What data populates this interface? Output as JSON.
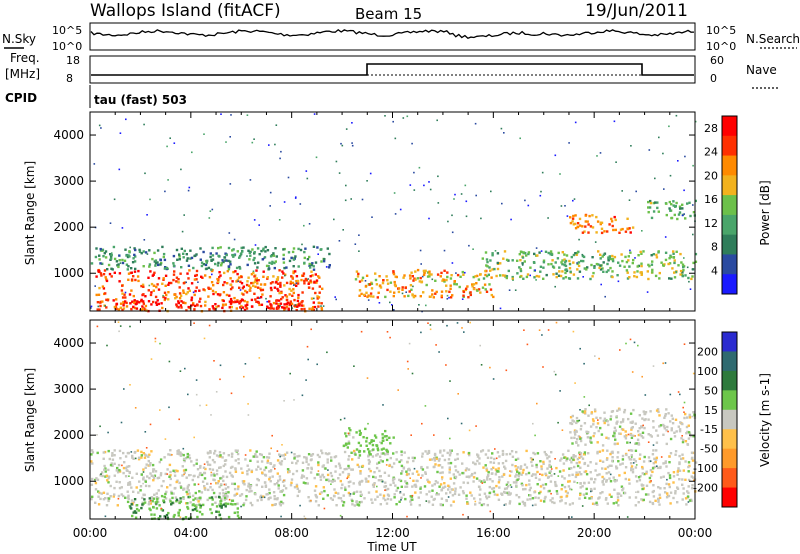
{
  "header": {
    "station": "Wallops Island (fitACF)",
    "beam": "Beam 15",
    "date": "19/Jun/2011"
  },
  "noise_panel": {
    "left_label": "N.Sky",
    "right_label": "N.Search",
    "left_ticks": [
      "10^5",
      "10^0"
    ],
    "right_ticks": [
      "10^5",
      "10^0"
    ]
  },
  "freq_panel": {
    "left_label_line1": "Freq.",
    "left_label_line2": "[MHz]",
    "left_ticks": [
      "18",
      "8"
    ],
    "right_label": "Nave",
    "right_ticks": [
      "60",
      "0"
    ]
  },
  "cpid": {
    "label": "CPID",
    "value": "tau (fast) 503"
  },
  "colors": {
    "power": [
      "#1a1aff",
      "#2a4aa0",
      "#2f7d5a",
      "#4aa56a",
      "#6cc04a",
      "#f2b21e",
      "#ff8a00",
      "#ff3000",
      "#ff0000"
    ],
    "velocity": [
      "#2b2bd0",
      "#2f6a70",
      "#2e7a3c",
      "#6dc64a",
      "#c8c8c0",
      "#ffc04a",
      "#ff9a2a",
      "#ff5a1a",
      "#ff0000"
    ]
  },
  "chart_data": [
    {
      "type": "heatmap",
      "name": "power",
      "xlabel": "Time UT",
      "ylabel": "Slant Range [km]",
      "xlim": [
        "00:00",
        "00:00"
      ],
      "ylim": [
        180,
        4500
      ],
      "x_ticks": [
        "00:00",
        "04:00",
        "08:00",
        "12:00",
        "16:00",
        "20:00",
        "00:00"
      ],
      "y_ticks": [
        1000,
        2000,
        3000,
        4000
      ],
      "colorbar": {
        "label": "Power [dB]",
        "ticks": [
          4,
          8,
          12,
          16,
          20,
          24,
          28
        ],
        "range": [
          0,
          30
        ]
      },
      "regions": [
        {
          "t0": 0.2,
          "t1": 9.2,
          "r0": 200,
          "r1": 1100,
          "level": 24
        },
        {
          "t0": 1.0,
          "t1": 8.5,
          "r0": 250,
          "r1": 450,
          "level": 29
        },
        {
          "t0": 0.0,
          "t1": 9.5,
          "r0": 1100,
          "r1": 1600,
          "level": 10
        },
        {
          "t0": 10.5,
          "t1": 16.0,
          "r0": 500,
          "r1": 1100,
          "level": 20
        },
        {
          "t0": 15.5,
          "t1": 24.0,
          "r0": 900,
          "r1": 1500,
          "level": 14
        },
        {
          "t0": 19.0,
          "t1": 21.5,
          "r0": 1900,
          "r1": 2300,
          "level": 22
        },
        {
          "t0": 22.0,
          "t1": 24.0,
          "r0": 2200,
          "r1": 2600,
          "level": 12
        }
      ]
    },
    {
      "type": "heatmap",
      "name": "velocity",
      "xlabel": "Time UT",
      "ylabel": "Slant Range [km]",
      "xlim": [
        "00:00",
        "00:00"
      ],
      "ylim": [
        180,
        4500
      ],
      "x_ticks": [
        "00:00",
        "04:00",
        "08:00",
        "12:00",
        "16:00",
        "20:00",
        "00:00"
      ],
      "y_ticks": [
        1000,
        2000,
        3000,
        4000
      ],
      "colorbar": {
        "label": "Velocity [m s-1]",
        "ticks": [
          200,
          100,
          50,
          15,
          -15,
          -50,
          -100,
          -200
        ]
      },
      "regions": [
        {
          "t0": 0.0,
          "t1": 24.0,
          "r0": 500,
          "r1": 1700,
          "value": 0
        },
        {
          "t0": 1.5,
          "t1": 6.0,
          "r0": 200,
          "r1": 700,
          "value": 40
        },
        {
          "t0": 10.0,
          "t1": 12.0,
          "r0": 1600,
          "r1": 2200,
          "value": 30
        },
        {
          "t0": 19.0,
          "t1": 24.0,
          "r0": 1800,
          "r1": 2600,
          "value": 0
        }
      ]
    }
  ]
}
